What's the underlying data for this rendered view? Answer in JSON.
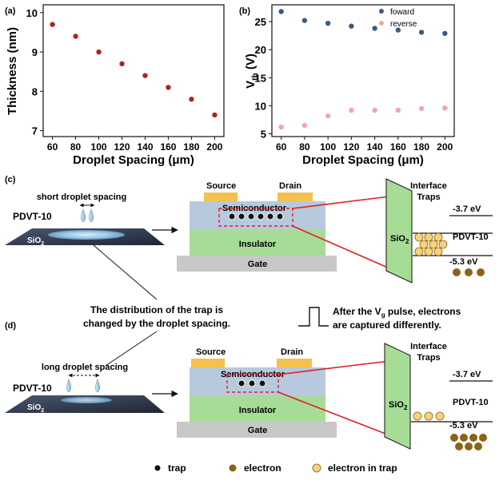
{
  "chart_data": [
    {
      "panel_label": "(a)",
      "type": "scatter",
      "xlabel": "Droplet Spacing (μm)",
      "ylabel": "Thickness (nm)",
      "x_ticks": [
        60,
        80,
        100,
        120,
        140,
        160,
        180,
        200
      ],
      "y_ticks": [
        7,
        8,
        9,
        10
      ],
      "xlim": [
        52,
        208
      ],
      "ylim": [
        6.85,
        10.2
      ],
      "color": "#b22222",
      "series": [
        {
          "x": [
            60,
            80,
            100,
            120,
            140,
            160,
            180,
            200
          ],
          "y": [
            9.7,
            9.4,
            9.0,
            8.7,
            8.4,
            8.1,
            7.8,
            7.4
          ]
        }
      ]
    },
    {
      "panel_label": "(b)",
      "type": "scatter",
      "xlabel": "Droplet Spacing (μm)",
      "ylabel_main": "V",
      "ylabel_sub": "th",
      "ylabel_unit": " (V)",
      "x_ticks": [
        60,
        80,
        100,
        120,
        140,
        160,
        180,
        200
      ],
      "y_ticks": [
        5,
        10,
        15,
        20,
        25
      ],
      "xlim": [
        52,
        208
      ],
      "ylim": [
        4.5,
        28
      ],
      "legend": "top-right",
      "series": [
        {
          "name": "foward",
          "color": "#3d5a80",
          "x": [
            60,
            80,
            100,
            120,
            140,
            160,
            180,
            200
          ],
          "y": [
            26.8,
            25.2,
            24.7,
            24.2,
            23.8,
            23.5,
            23.1,
            22.9
          ]
        },
        {
          "name": "reverse",
          "color": "#f4a6a6",
          "x": [
            60,
            80,
            100,
            120,
            140,
            160,
            180,
            200
          ],
          "y": [
            6.2,
            6.5,
            8.2,
            9.2,
            9.2,
            9.2,
            9.5,
            9.6
          ]
        }
      ]
    }
  ],
  "panel_c": {
    "label": "(c)",
    "spacing_text": "short droplet spacing",
    "material": "PDVT-10",
    "substrate": "SiO",
    "substrate_sub": "2",
    "source": "Source",
    "drain": "Drain",
    "semiconductor": "Semiconductor",
    "insulator": "Insulator",
    "gate": "Gate",
    "traps_title_1": "Interface",
    "traps_title_2": "Traps",
    "oxide": "SiO",
    "oxide_sub": "2",
    "level_top": "-3.7 eV",
    "level_name": "PDVT-10",
    "level_bottom": "-5.3 eV"
  },
  "panel_d": {
    "label": "(d)",
    "spacing_text": "long droplet spacing",
    "material": "PDVT-10",
    "substrate": "SiO",
    "substrate_sub": "2",
    "source": "Source",
    "drain": "Drain",
    "semiconductor": "Semiconductor",
    "insulator": "Insulator",
    "gate": "Gate",
    "traps_title_1": "Interface",
    "traps_title_2": "Traps",
    "oxide": "SiO",
    "oxide_sub": "2",
    "level_top": "-3.7 eV",
    "level_name": "PDVT-10",
    "level_bottom": "-5.3 eV"
  },
  "captions": {
    "left_line1": "The distribution of the trap is",
    "left_line2": "changed by the droplet spacing.",
    "right_line1_a": "After the V",
    "right_line1_sub": "g",
    "right_line1_b": " pulse, electrons",
    "right_line2": "are captured differently."
  },
  "legend": {
    "trap": "trap",
    "electron": "electron",
    "electron_in_trap": "electron in trap"
  },
  "colors": {
    "trap": "#111111",
    "electron": "#8a6416",
    "electron_in_trap": "#f7d27a",
    "electrode": "#f2c14e",
    "semiconductor": "#b7c9dc",
    "insulator": "#a6dc96",
    "gate": "#c8c8c8",
    "red_line": "#e02020"
  }
}
